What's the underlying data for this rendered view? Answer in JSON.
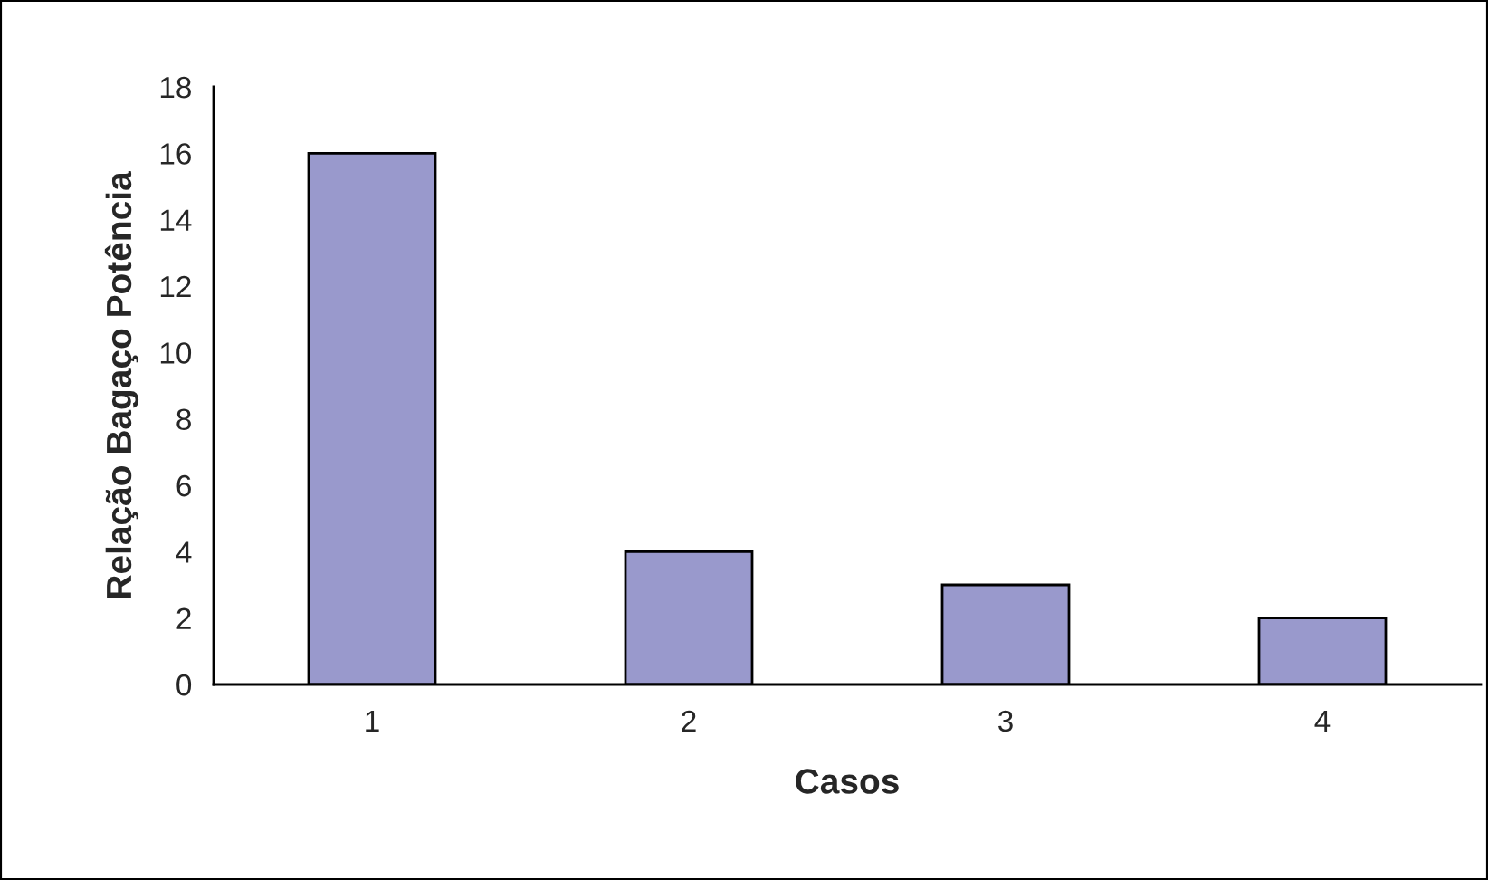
{
  "chart_data": {
    "type": "bar",
    "xlabel": "Casos",
    "ylabel": "Relação Bagaço Potência",
    "categories": [
      "1",
      "2",
      "3",
      "4"
    ],
    "values": [
      16,
      4,
      3,
      2
    ],
    "color": "#9999cc",
    "ylim": [
      0,
      18
    ],
    "yticks": [
      0,
      2,
      4,
      6,
      8,
      10,
      12,
      14,
      16,
      18
    ],
    "grid": false,
    "legend": false
  }
}
